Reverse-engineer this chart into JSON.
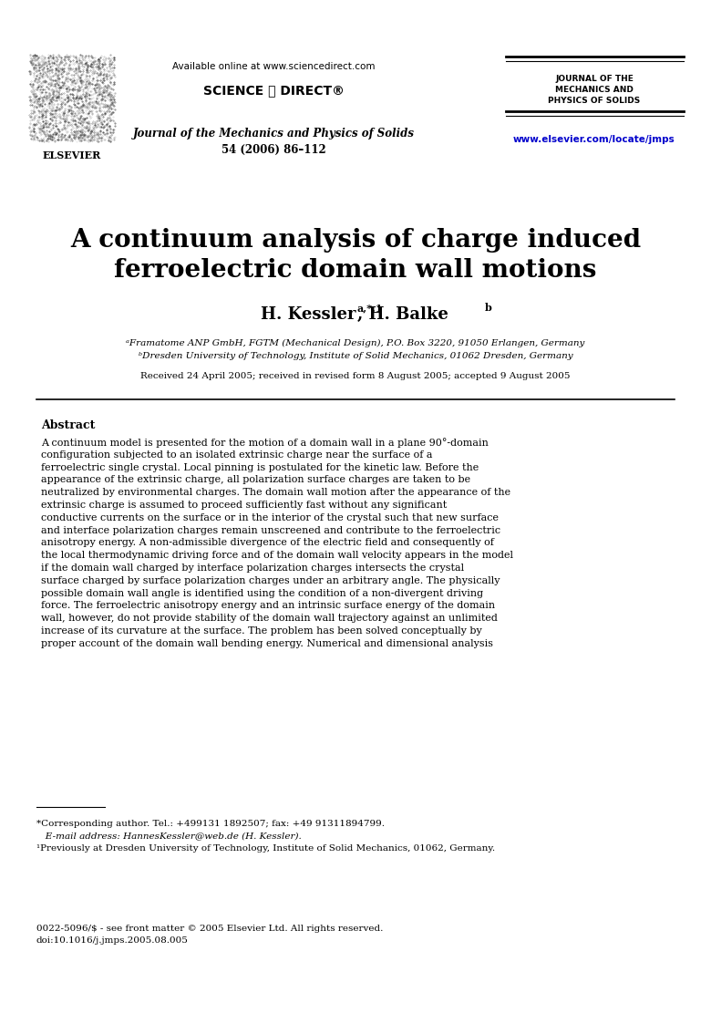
{
  "bg_color": "#ffffff",
  "header": {
    "available_online": "Available online at www.sciencedirect.com",
    "sciencedirect": "SCIENCE ⓐ DIRECT®",
    "journal_name": "Journal of the Mechanics and Physics of Solids",
    "volume_info": "54 (2006) 86–112",
    "journal_right_line1": "JOURNAL OF THE",
    "journal_right_line2": "MECHANICS AND",
    "journal_right_line3": "PHYSICS OF SOLIDS",
    "url": "www.elsevier.com/locate/jmps"
  },
  "title_line1": "A continuum analysis of charge induced",
  "title_line2": "ferroelectric domain wall motions",
  "affil_a": "ᵃFramatome ANP GmbH, FGTM (Mechanical Design), P.O. Box 3220, 91050 Erlangen, Germany",
  "affil_b": "ᵇDresden University of Technology, Institute of Solid Mechanics, 01062 Dresden, Germany",
  "received": "Received 24 April 2005; received in revised form 8 August 2005; accepted 9 August 2005",
  "abstract_heading": "Abstract",
  "abstract_text": "   A continuum model is presented for the motion of a domain wall in a plane 90°-domain configuration subjected to an isolated extrinsic charge near the surface of a ferroelectric single crystal. Local pinning is postulated for the kinetic law. Before the appearance of the extrinsic charge, all polarization surface charges are taken to be neutralized by environmental charges. The domain wall motion after the appearance of the extrinsic charge is assumed to proceed sufficiently fast without any significant conductive currents on the surface or in the interior of the crystal such that new surface and interface polarization charges remain unscreened and contribute to the ferroelectric anisotropy energy. A non-admissible divergence of the electric field and consequently of the local thermodynamic driving force and of the domain wall velocity appears in the model if the domain wall charged by interface polarization charges intersects the crystal surface charged by surface polarization charges under an arbitrary angle. The physically possible domain wall angle is identified using the condition of a non-divergent driving force. The ferroelectric anisotropy energy and an intrinsic surface energy of the domain wall, however, do not provide stability of the domain wall trajectory against an unlimited increase of its curvature at the surface. The problem has been solved conceptually by proper account of the domain wall bending energy. Numerical and dimensional analysis",
  "footnote1": "*Corresponding author. Tel.: +499131 1892507; fax: +49 91311894799.",
  "footnote2": "   E-mail address: HannesKessler@web.de (H. Kessler).",
  "footnote3": "¹Previously at Dresden University of Technology, Institute of Solid Mechanics, 01062, Germany.",
  "footer1": "0022-5096/$ - see front matter © 2005 Elsevier Ltd. All rights reserved.",
  "footer2": "doi:10.1016/j.jmps.2005.08.005",
  "url_color": "#0000cc"
}
